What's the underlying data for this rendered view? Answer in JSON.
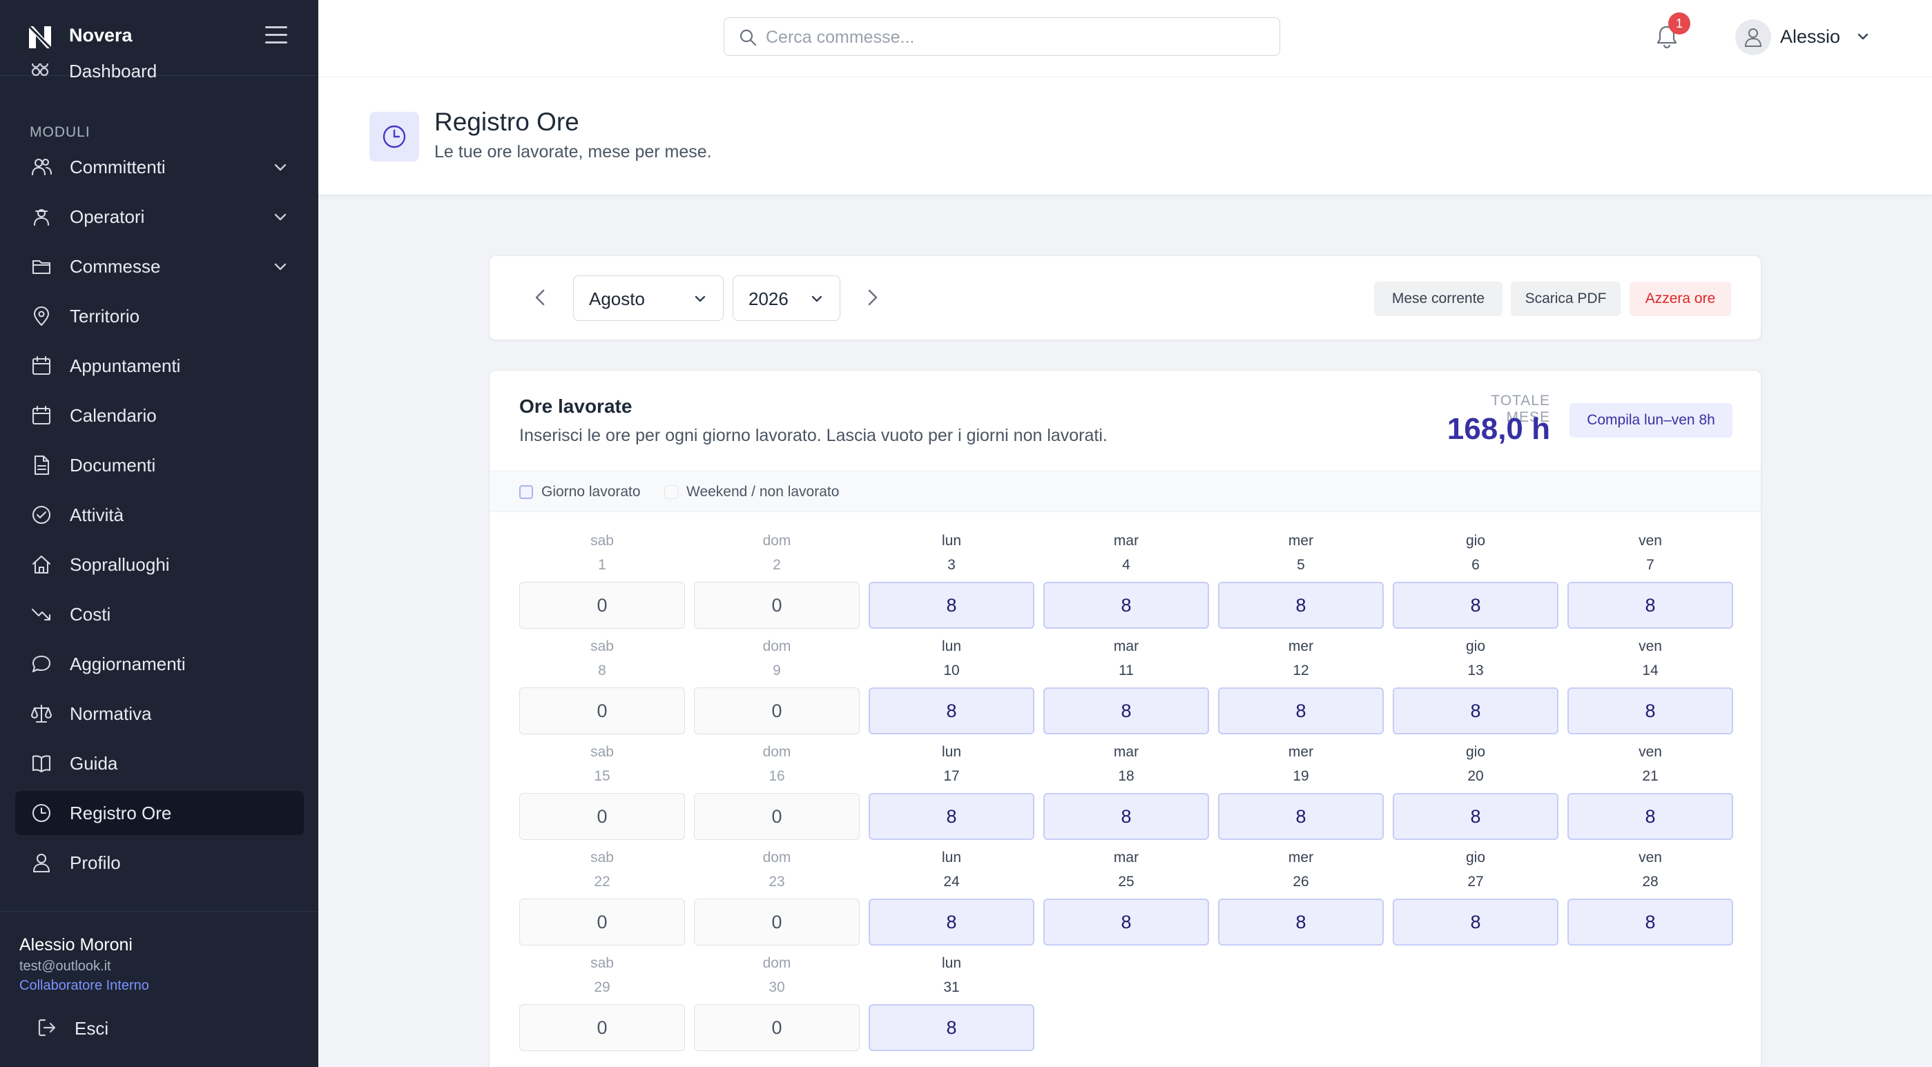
{
  "brand": {
    "name": "Novera"
  },
  "sidebar": {
    "partial_item": "Dashboard",
    "section_label": "MODULI",
    "items": [
      {
        "label": "Committenti",
        "icon": "users-icon",
        "expandable": true,
        "active": false
      },
      {
        "label": "Operatori",
        "icon": "operator-icon",
        "expandable": true,
        "active": false
      },
      {
        "label": "Commesse",
        "icon": "folder-icon",
        "expandable": true,
        "active": false
      },
      {
        "label": "Territorio",
        "icon": "map-pin-icon",
        "expandable": false,
        "active": false
      },
      {
        "label": "Appuntamenti",
        "icon": "calendar-icon",
        "expandable": false,
        "active": false
      },
      {
        "label": "Calendario",
        "icon": "calendar-icon",
        "expandable": false,
        "active": false
      },
      {
        "label": "Documenti",
        "icon": "document-icon",
        "expandable": false,
        "active": false
      },
      {
        "label": "Attività",
        "icon": "check-circle-icon",
        "expandable": false,
        "active": false
      },
      {
        "label": "Sopralluoghi",
        "icon": "home-icon",
        "expandable": false,
        "active": false
      },
      {
        "label": "Costi",
        "icon": "trend-down-icon",
        "expandable": false,
        "active": false
      },
      {
        "label": "Aggiornamenti",
        "icon": "chat-bubble-icon",
        "expandable": false,
        "active": false
      },
      {
        "label": "Normativa",
        "icon": "scale-icon",
        "expandable": false,
        "active": false
      },
      {
        "label": "Guida",
        "icon": "book-icon",
        "expandable": false,
        "active": false
      },
      {
        "label": "Registro Ore",
        "icon": "clock-icon",
        "expandable": false,
        "active": true
      },
      {
        "label": "Profilo",
        "icon": "user-icon",
        "expandable": false,
        "active": false
      }
    ],
    "user": {
      "name": "Alessio Moroni",
      "email": "test@outlook.it",
      "role": "Collaboratore Interno"
    },
    "logout_label": "Esci"
  },
  "topbar": {
    "search_placeholder": "Cerca commesse...",
    "notification_count": "1",
    "username": "Alessio"
  },
  "page": {
    "title": "Registro Ore",
    "subtitle": "Le tue ore lavorate, mese per mese."
  },
  "controls": {
    "month": "Agosto",
    "year": "2026",
    "current_month_label": "Mese corrente",
    "download_label": "Scarica PDF",
    "reset_label": "Azzera ore"
  },
  "hours": {
    "title": "Ore lavorate",
    "subtitle": "Inserisci le ore per ogni giorno lavorato. Lascia vuoto per i giorni non lavorati.",
    "total_label": "TOTALE MESE",
    "total_value": "168,0 h",
    "fill_label": "Compila lun–ven 8h",
    "legend_work": "Giorno lavorato",
    "legend_off": "Weekend / non lavorato",
    "days": [
      {
        "name": "sab",
        "num": "1",
        "hours": "0",
        "workday": false
      },
      {
        "name": "dom",
        "num": "2",
        "hours": "0",
        "workday": false
      },
      {
        "name": "lun",
        "num": "3",
        "hours": "8",
        "workday": true
      },
      {
        "name": "mar",
        "num": "4",
        "hours": "8",
        "workday": true
      },
      {
        "name": "mer",
        "num": "5",
        "hours": "8",
        "workday": true
      },
      {
        "name": "gio",
        "num": "6",
        "hours": "8",
        "workday": true
      },
      {
        "name": "ven",
        "num": "7",
        "hours": "8",
        "workday": true
      },
      {
        "name": "sab",
        "num": "8",
        "hours": "0",
        "workday": false
      },
      {
        "name": "dom",
        "num": "9",
        "hours": "0",
        "workday": false
      },
      {
        "name": "lun",
        "num": "10",
        "hours": "8",
        "workday": true
      },
      {
        "name": "mar",
        "num": "11",
        "hours": "8",
        "workday": true
      },
      {
        "name": "mer",
        "num": "12",
        "hours": "8",
        "workday": true
      },
      {
        "name": "gio",
        "num": "13",
        "hours": "8",
        "workday": true
      },
      {
        "name": "ven",
        "num": "14",
        "hours": "8",
        "workday": true
      },
      {
        "name": "sab",
        "num": "15",
        "hours": "0",
        "workday": false
      },
      {
        "name": "dom",
        "num": "16",
        "hours": "0",
        "workday": false
      },
      {
        "name": "lun",
        "num": "17",
        "hours": "8",
        "workday": true
      },
      {
        "name": "mar",
        "num": "18",
        "hours": "8",
        "workday": true
      },
      {
        "name": "mer",
        "num": "19",
        "hours": "8",
        "workday": true
      },
      {
        "name": "gio",
        "num": "20",
        "hours": "8",
        "workday": true
      },
      {
        "name": "ven",
        "num": "21",
        "hours": "8",
        "workday": true
      },
      {
        "name": "sab",
        "num": "22",
        "hours": "0",
        "workday": false
      },
      {
        "name": "dom",
        "num": "23",
        "hours": "0",
        "workday": false
      },
      {
        "name": "lun",
        "num": "24",
        "hours": "8",
        "workday": true
      },
      {
        "name": "mar",
        "num": "25",
        "hours": "8",
        "workday": true
      },
      {
        "name": "mer",
        "num": "26",
        "hours": "8",
        "workday": true
      },
      {
        "name": "gio",
        "num": "27",
        "hours": "8",
        "workday": true
      },
      {
        "name": "ven",
        "num": "28",
        "hours": "8",
        "workday": true
      },
      {
        "name": "sab",
        "num": "29",
        "hours": "0",
        "workday": false
      },
      {
        "name": "dom",
        "num": "30",
        "hours": "0",
        "workday": false
      },
      {
        "name": "lun",
        "num": "31",
        "hours": "8",
        "workday": true
      }
    ]
  },
  "colors": {
    "sidebar_bg": "#1e2433",
    "accent": "#3730a3",
    "danger": "#dc2626"
  }
}
